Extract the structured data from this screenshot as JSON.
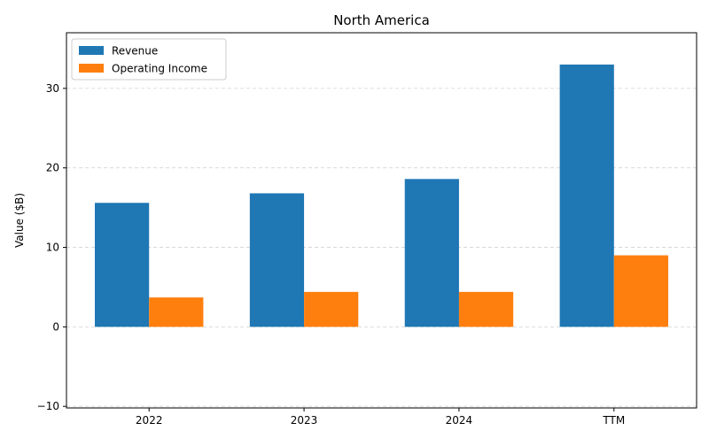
{
  "chart_data": {
    "type": "bar",
    "title": "North America",
    "xlabel": "",
    "ylabel": "Value ($B)",
    "categories": [
      "2022",
      "2023",
      "2024",
      "TTM"
    ],
    "series": [
      {
        "name": "Revenue",
        "color": "#1f77b4",
        "values": [
          15.6,
          16.8,
          18.6,
          33.0
        ]
      },
      {
        "name": "Operating Income",
        "color": "#ff7f0e",
        "values": [
          3.7,
          4.4,
          4.4,
          9.0
        ]
      }
    ],
    "ylim": [
      -10.2,
      37
    ],
    "yticks": [
      -10,
      0,
      10,
      20,
      30
    ],
    "grid": "y-dashed",
    "legend_position": "top-left"
  }
}
